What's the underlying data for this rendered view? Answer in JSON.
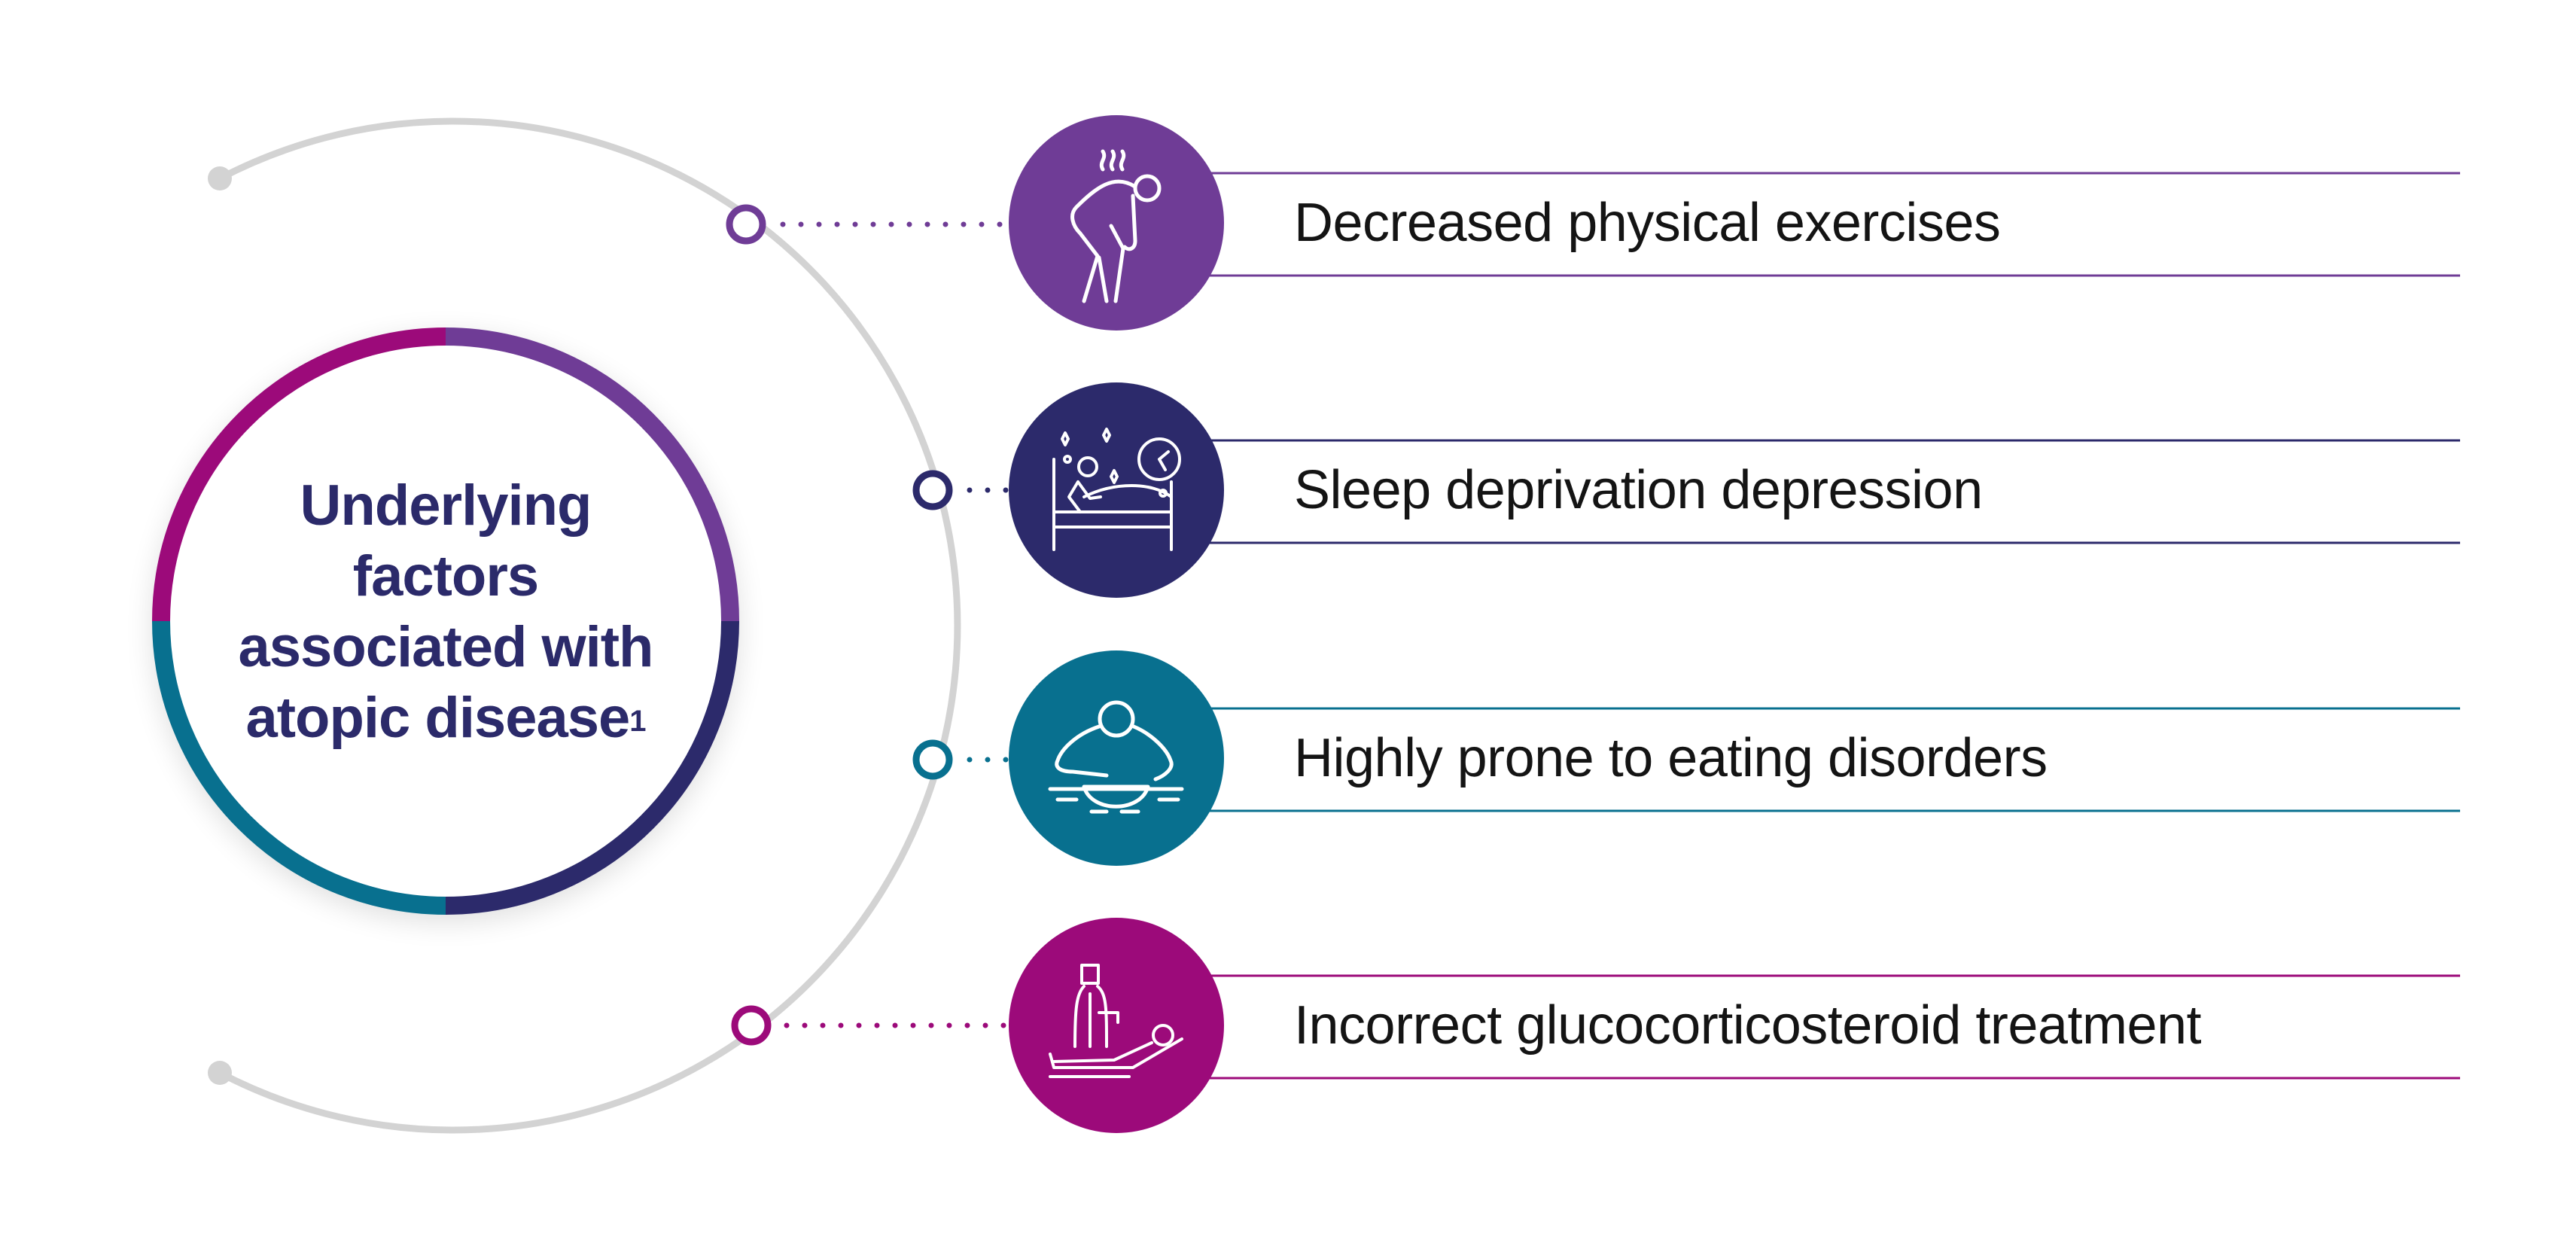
{
  "center": {
    "title": "Underlying factors associated with atopic disease",
    "superscript": "1"
  },
  "factors": [
    {
      "label": "Decreased physical exercises",
      "icon": "tired-person-icon",
      "color": "#6f3c96"
    },
    {
      "label": "Sleep deprivation depression",
      "icon": "sleepless-bed-icon",
      "color": "#2c2a6b"
    },
    {
      "label": "Highly prone to eating disorders",
      "icon": "person-eating-icon",
      "color": "#08708f"
    },
    {
      "label": "Incorrect glucocorticosteroid treatment",
      "icon": "doctor-patient-icon",
      "color": "#9c0a7a"
    }
  ],
  "colors": {
    "arc": "#d3d3d3"
  }
}
